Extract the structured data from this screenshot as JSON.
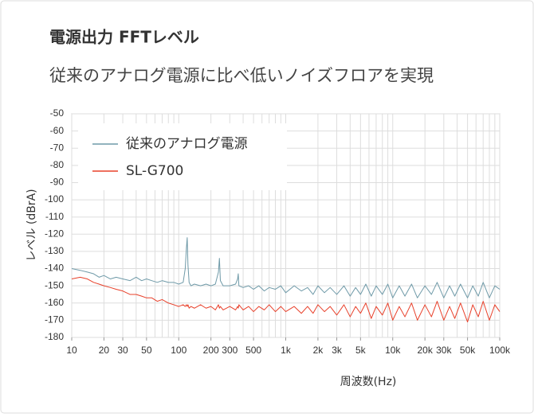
{
  "chart_data": {
    "type": "line",
    "title": "電源出力 FFTレベル",
    "subtitle": "従来のアナログ電源に比べ低いノイズフロアを実現",
    "x_label": "周波数(Hz)",
    "y_label": "レベル (dBrA)",
    "x_log": true,
    "grid": true,
    "legend": "upper left",
    "xlim": [
      10,
      100000
    ],
    "ylim": [
      -180,
      -50
    ],
    "yticks": [
      -50,
      -60,
      -70,
      -80,
      -90,
      -100,
      -110,
      -120,
      -130,
      -140,
      -150,
      -160,
      -170,
      -180
    ],
    "xticks": [
      10,
      20,
      30,
      50,
      100,
      200,
      300,
      500,
      {
        "value": 1000,
        "label": "1k"
      },
      {
        "value": 2000,
        "label": "2k"
      },
      {
        "value": 3000,
        "label": "3k"
      },
      {
        "value": 5000,
        "label": "5k"
      },
      {
        "value": 10000,
        "label": "10k"
      },
      {
        "value": 20000,
        "label": "20k"
      },
      {
        "value": 30000,
        "label": "30k"
      },
      {
        "value": 50000,
        "label": "50k"
      },
      {
        "value": 100000,
        "label": "100k"
      }
    ],
    "xgrid": [
      10,
      20,
      30,
      40,
      50,
      60,
      70,
      80,
      90,
      100,
      200,
      300,
      400,
      500,
      600,
      700,
      800,
      900,
      1000,
      2000,
      3000,
      4000,
      5000,
      6000,
      7000,
      8000,
      9000,
      10000,
      20000,
      30000,
      40000,
      50000,
      60000,
      70000,
      80000,
      90000,
      100000
    ],
    "x": [
      10,
      12,
      14,
      16,
      18,
      20,
      23,
      26,
      30,
      35,
      40,
      45,
      50,
      56,
      63,
      70,
      80,
      90,
      100,
      110,
      115,
      118,
      120,
      122,
      125,
      130,
      140,
      160,
      180,
      200,
      220,
      235,
      240,
      245,
      260,
      300,
      340,
      355,
      360,
      365,
      400,
      450,
      500,
      560,
      630,
      700,
      800,
      900,
      1000,
      1200,
      1400,
      1600,
      1800,
      2000,
      2300,
      2600,
      3000,
      3500,
      4000,
      4500,
      5000,
      5600,
      6300,
      7000,
      8000,
      9000,
      10000,
      11500,
      13000,
      15000,
      17000,
      20000,
      23000,
      26000,
      30000,
      34000,
      38000,
      43000,
      50000,
      56000,
      63000,
      70000,
      80000,
      90000,
      100000
    ],
    "series": [
      {
        "name": "従来のアナログ電源",
        "color": "#6f9aa8",
        "values": [
          -140,
          -141,
          -142,
          -143,
          -145,
          -144,
          -146,
          -145,
          -146,
          -147,
          -145,
          -147,
          -146,
          -147,
          -148,
          -147,
          -148,
          -148,
          -149,
          -148,
          -140,
          -128,
          -122,
          -138,
          -148,
          -150,
          -149,
          -150,
          -149,
          -150,
          -149,
          -142,
          -134,
          -147,
          -150,
          -150,
          -149,
          -146,
          -143,
          -150,
          -151,
          -150,
          -152,
          -150,
          -153,
          -151,
          -152,
          -150,
          -154,
          -150,
          -153,
          -151,
          -155,
          -150,
          -154,
          -151,
          -155,
          -150,
          -156,
          -151,
          -155,
          -149,
          -156,
          -150,
          -155,
          -149,
          -157,
          -150,
          -156,
          -149,
          -157,
          -150,
          -155,
          -148,
          -157,
          -150,
          -156,
          -149,
          -157,
          -150,
          -156,
          -148,
          -157,
          -150,
          -152
        ]
      },
      {
        "name": "SL-G700",
        "color": "#e8402a",
        "values": [
          -146,
          -145,
          -146,
          -148,
          -149,
          -150,
          -151,
          -152,
          -153,
          -155,
          -155,
          -156,
          -157,
          -157,
          -159,
          -158,
          -160,
          -161,
          -162,
          -161,
          -162,
          -161,
          -162,
          -161,
          -163,
          -162,
          -163,
          -161,
          -163,
          -162,
          -164,
          -161,
          -163,
          -162,
          -164,
          -162,
          -164,
          -162,
          -163,
          -161,
          -164,
          -162,
          -165,
          -162,
          -164,
          -161,
          -165,
          -162,
          -165,
          -162,
          -166,
          -162,
          -166,
          -161,
          -165,
          -162,
          -167,
          -161,
          -168,
          -162,
          -166,
          -160,
          -169,
          -162,
          -167,
          -160,
          -170,
          -162,
          -168,
          -160,
          -170,
          -161,
          -168,
          -159,
          -170,
          -162,
          -169,
          -160,
          -171,
          -161,
          -168,
          -159,
          -170,
          -161,
          -165
        ]
      }
    ]
  }
}
